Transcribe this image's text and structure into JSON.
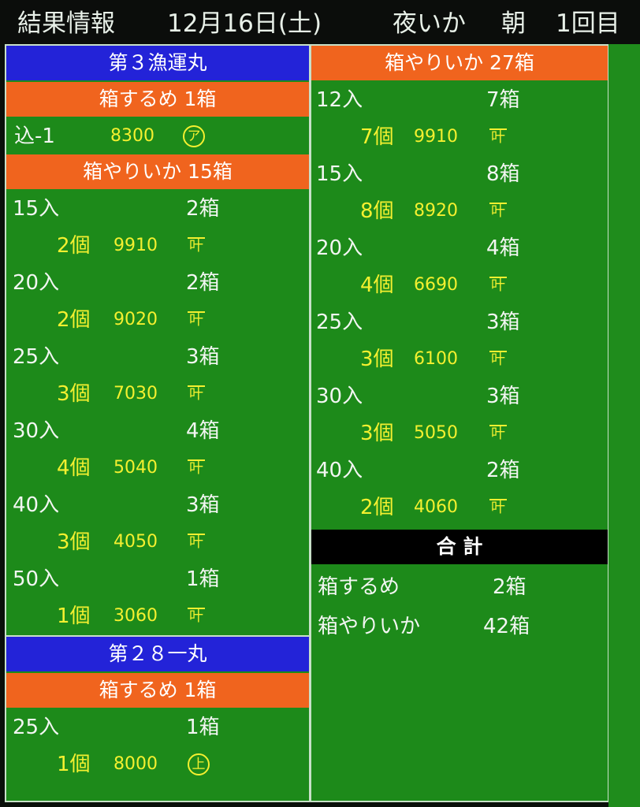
{
  "header": {
    "title": "結果情報",
    "date": "12月16日(土)",
    "category": "夜いか",
    "session": "朝",
    "round": "1回目"
  },
  "left": {
    "boats": [
      {
        "name": "第３漁運丸",
        "sections": [
          {
            "title": "箱するめ 1箱",
            "items": [
              {
                "single": {
                  "label": "込-1",
                  "price": "8300",
                  "buyer": "ア",
                  "buyer_style": "circle"
                }
              }
            ]
          },
          {
            "title": "箱やりいか 15箱",
            "items": [
              {
                "size": "15入",
                "boxes": "2箱",
                "count": "2個",
                "price": "9910",
                "buyer": "叶"
              },
              {
                "size": "20入",
                "boxes": "2箱",
                "count": "2個",
                "price": "9020",
                "buyer": "叶"
              },
              {
                "size": "25入",
                "boxes": "3箱",
                "count": "3個",
                "price": "7030",
                "buyer": "叶"
              },
              {
                "size": "30入",
                "boxes": "4箱",
                "count": "4個",
                "price": "5040",
                "buyer": "叶"
              },
              {
                "size": "40入",
                "boxes": "3箱",
                "count": "3個",
                "price": "4050",
                "buyer": "叶"
              },
              {
                "size": "50入",
                "boxes": "1箱",
                "count": "1個",
                "price": "3060",
                "buyer": "叶"
              }
            ]
          }
        ]
      },
      {
        "name": "第２８一丸",
        "sections": [
          {
            "title": "箱するめ 1箱",
            "items": [
              {
                "size": "25入",
                "boxes": "1箱",
                "count": "1個",
                "price": "8000",
                "buyer": "上",
                "buyer_style": "circle"
              }
            ]
          }
        ]
      }
    ]
  },
  "right": {
    "section": {
      "title": "箱やりいか 27箱",
      "items": [
        {
          "size": "12入",
          "boxes": "7箱",
          "count": "7個",
          "price": "9910",
          "buyer": "叶"
        },
        {
          "size": "15入",
          "boxes": "8箱",
          "count": "8個",
          "price": "8920",
          "buyer": "叶"
        },
        {
          "size": "20入",
          "boxes": "4箱",
          "count": "4個",
          "price": "6690",
          "buyer": "叶"
        },
        {
          "size": "25入",
          "boxes": "3箱",
          "count": "3個",
          "price": "6100",
          "buyer": "叶"
        },
        {
          "size": "30入",
          "boxes": "3箱",
          "count": "3個",
          "price": "5050",
          "buyer": "叶"
        },
        {
          "size": "40入",
          "boxes": "2箱",
          "count": "2個",
          "price": "4060",
          "buyer": "叶"
        }
      ]
    },
    "total": {
      "title": "合 計",
      "rows": [
        {
          "label": "箱するめ",
          "value": "2箱"
        },
        {
          "label": "箱やりいか",
          "value": "42箱"
        }
      ]
    }
  },
  "colors": {
    "background": "#1d8a1a",
    "boat_header": "#2323d8",
    "section_header": "#f0641e",
    "total_header": "#000000",
    "detail_text": "#f4f030"
  }
}
